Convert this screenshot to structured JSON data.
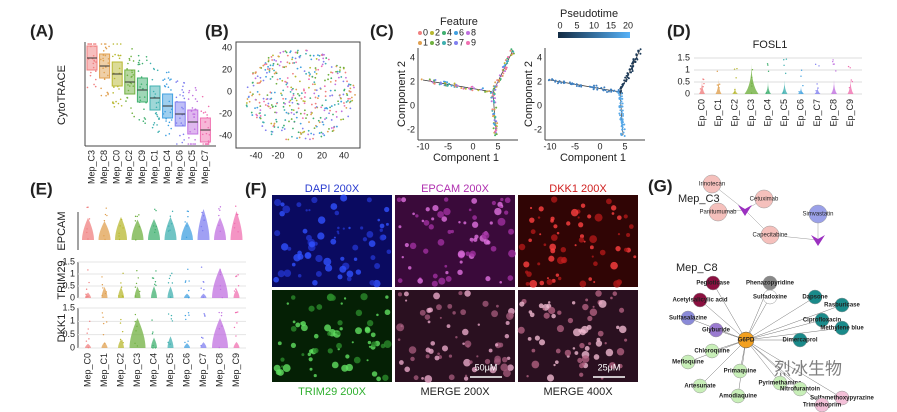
{
  "A": {
    "label": "(A)",
    "y_label": "CytoTRACE",
    "categories": [
      "Mep_C3",
      "Mep_C8",
      "Mep_C0",
      "Mep_C2",
      "Mep_C9",
      "Mep_C1",
      "Mep_C4",
      "Mep_C6",
      "Mep_C5",
      "Mep_C7"
    ]
  },
  "B": {
    "label": "(B)",
    "xticks": [
      "-40",
      "-20",
      "0",
      "20",
      "40"
    ],
    "yticks": [
      "40",
      "20",
      "0",
      "-20",
      "-40"
    ]
  },
  "C": {
    "label": "(C)",
    "legend_title": "Feature",
    "legend_items": [
      "0",
      "1",
      "2",
      "3",
      "4",
      "5",
      "6",
      "7",
      "8",
      "9"
    ],
    "colorbar_title": "Pseudotime",
    "colorbar_ticks": [
      "0",
      "5",
      "10",
      "15",
      "20"
    ],
    "x_label": "Component 1",
    "y_label": "Component 2",
    "xticks": [
      "-10",
      "-5",
      "0",
      "5"
    ],
    "yticks": [
      "4",
      "2",
      "0",
      "-2"
    ]
  },
  "D": {
    "label": "(D)",
    "title": "FOSL1",
    "yticks": [
      "1.5",
      "1",
      "0.5",
      "0"
    ],
    "categories": [
      "Ep_C0",
      "Ep_C1",
      "Ep_C2",
      "Ep_C3",
      "Ep_C4",
      "Ep_C5",
      "Ep_C6",
      "Ep_C7",
      "Ep_C8",
      "Ep_C9"
    ]
  },
  "E": {
    "label": "(E)",
    "row_labels": [
      "EPCAM",
      "TRIM29",
      "DKK1"
    ],
    "yticks": [
      "1.5",
      "1",
      "0.5",
      "0"
    ],
    "categories": [
      "Mep_C0",
      "Mep_C1",
      "Mep_C2",
      "Mep_C3",
      "Mep_C4",
      "Mep_C5",
      "Mep_C6",
      "Mep_C7",
      "Mep_C8",
      "Mep_C9"
    ]
  },
  "F": {
    "label": "(F)",
    "images": [
      "DAPI 200X",
      "EPCAM 200X",
      "DKK1 200X",
      "TRIM29 200X",
      "MERGE 200X",
      "MERGE 400X"
    ],
    "scale_bars": [
      "50μM",
      "25μM"
    ]
  },
  "G": {
    "label": "(G)",
    "groups": [
      "Mep_C3",
      "Mep_C8"
    ],
    "c3_nodes": [
      "Irinotecan",
      "Cetuximab",
      "Simvastatin",
      "Panitumumab",
      "Capecitabine"
    ],
    "c8_center": "G6PD",
    "c8_nodes": [
      "Pegloticase",
      "Phenazopyridine",
      "Sulfadoxine",
      "Dapsone",
      "Rasburicase",
      "Acetylsalicylic acid",
      "Sulfasalazine",
      "Ciprofloxacin",
      "Methylene blue",
      "Glyburide",
      "Dimercaprol",
      "Chloroquine",
      "Mefloquine",
      "Primaquine",
      "Pyrimethamine",
      "Nitrofurantoin",
      "Artesunate",
      "Amodiaquine",
      "Sulfamethoxypyrazine",
      "Trimethoprim"
    ]
  },
  "watermark": "烈冰生物"
}
